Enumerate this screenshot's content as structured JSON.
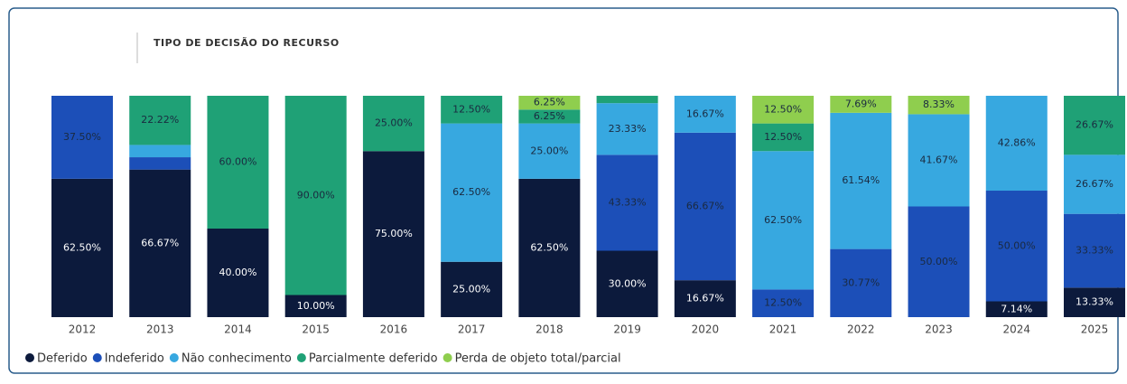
{
  "chart_data": {
    "type": "stacked_bar",
    "title": "TIPO DE DECISÃO DO RECURSO",
    "categories": [
      "2012",
      "2013",
      "2014",
      "2015",
      "2016",
      "2017",
      "2018",
      "2019",
      "2020",
      "2021",
      "2022",
      "2023",
      "2024",
      "2025"
    ],
    "ylim": [
      0,
      100
    ],
    "series": [
      {
        "name": "Deferido",
        "color": "#0c1a3c",
        "values": [
          62.5,
          66.67,
          40,
          10,
          75,
          25,
          62.5,
          30,
          16.67,
          0,
          0,
          0,
          7.14,
          13.33
        ],
        "value_labels": [
          "62.50%",
          "66.67%",
          "40.00%",
          "10.00%",
          "75.00%",
          "25.00%",
          "62.50%",
          "30.00%",
          "16.67%",
          null,
          null,
          null,
          "7.14%",
          "13.33%"
        ]
      },
      {
        "name": "Indeferido",
        "color": "#1c4fb8",
        "values": [
          37.5,
          5.56,
          0,
          0,
          0,
          0,
          0,
          43.33,
          66.67,
          12.5,
          30.77,
          50,
          50,
          33.33
        ],
        "value_labels": [
          "37.50%",
          null,
          null,
          null,
          null,
          null,
          null,
          "43.33%",
          "66.67%",
          "12.50%",
          "30.77%",
          "50.00%",
          "50.00%",
          "33.33%"
        ]
      },
      {
        "name": "Não conhecimento",
        "color": "#37a8e0",
        "values": [
          0,
          5.56,
          0,
          0,
          0,
          62.5,
          25,
          23.33,
          16.67,
          62.5,
          61.54,
          41.67,
          42.86,
          26.67
        ],
        "value_labels": [
          null,
          null,
          null,
          null,
          null,
          "62.50%",
          "25.00%",
          "23.33%",
          "16.67%",
          "62.50%",
          "61.54%",
          "41.67%",
          "42.86%",
          "26.67%"
        ]
      },
      {
        "name": "Parcialmente deferido",
        "color": "#1fa176",
        "values": [
          0,
          22.22,
          60,
          90,
          25,
          12.5,
          6.25,
          3.33,
          0,
          12.5,
          0,
          0,
          0,
          26.67
        ],
        "value_labels": [
          null,
          "22.22%",
          "60.00%",
          "90.00%",
          "25.00%",
          "12.50%",
          "6.25%",
          null,
          null,
          "12.50%",
          null,
          null,
          null,
          "26.67%"
        ]
      },
      {
        "name": "Perda de objeto total/parcial",
        "color": "#8fce4e",
        "values": [
          0,
          0,
          0,
          0,
          0,
          0,
          6.25,
          0,
          0,
          12.5,
          7.69,
          8.33,
          0,
          0
        ],
        "value_labels": [
          null,
          null,
          null,
          null,
          null,
          null,
          "6.25%",
          null,
          null,
          "12.50%",
          "7.69%",
          "8.33%",
          null,
          null
        ]
      }
    ]
  }
}
